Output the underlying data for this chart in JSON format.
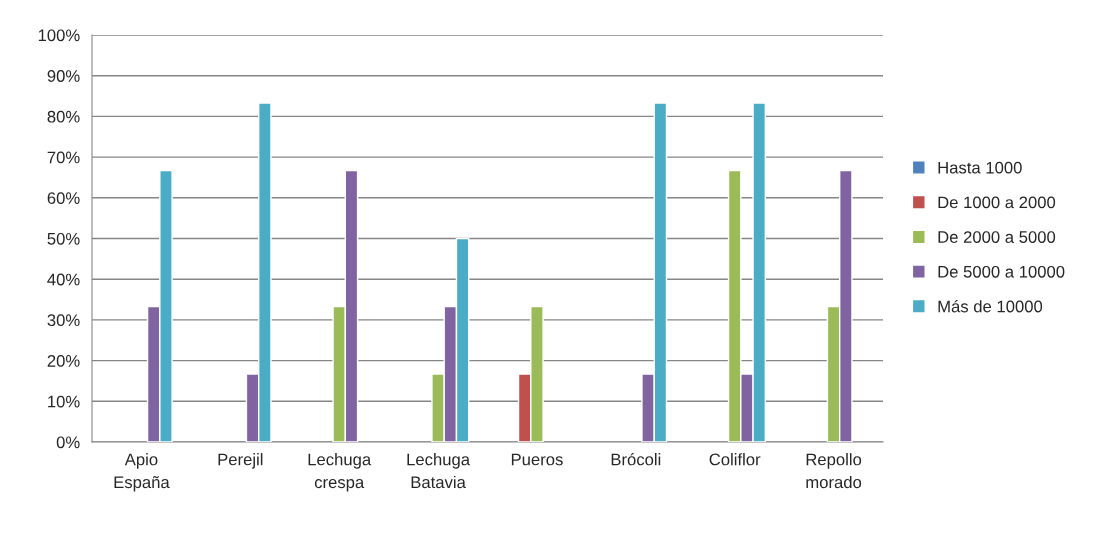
{
  "chart_data": {
    "type": "bar",
    "categories": [
      "Apio\nEspaña",
      "Perejil",
      "Lechuga\ncrespa",
      "Lechuga\nBatavia",
      "Pueros",
      "Brócoli",
      "Coliflor",
      "Repollo\nmorado"
    ],
    "series": [
      {
        "name": "Hasta 1000",
        "color": "#4f81bd",
        "values": [
          null,
          null,
          null,
          null,
          null,
          null,
          null,
          null
        ]
      },
      {
        "name": "De 1000 a 2000",
        "color": "#c0504d",
        "values": [
          null,
          null,
          null,
          null,
          16.7,
          null,
          null,
          null
        ]
      },
      {
        "name": "De 2000 a 5000",
        "color": "#9bbb59",
        "values": [
          null,
          null,
          33.3,
          16.7,
          33.3,
          null,
          66.7,
          33.3
        ]
      },
      {
        "name": "De 5000 a 10000",
        "color": "#8064a2",
        "values": [
          33.3,
          16.7,
          66.7,
          33.3,
          null,
          16.7,
          16.7,
          66.7
        ]
      },
      {
        "name": "Más de 10000",
        "color": "#4bacc6",
        "values": [
          66.7,
          83.3,
          null,
          50,
          null,
          83.3,
          83.3,
          null
        ]
      }
    ],
    "ylim": [
      0,
      100
    ],
    "yticks": [
      {
        "value": 0,
        "label": "0%"
      },
      {
        "value": 10,
        "label": "10%"
      },
      {
        "value": 20,
        "label": "20%"
      },
      {
        "value": 30,
        "label": "30%"
      },
      {
        "value": 40,
        "label": "40%"
      },
      {
        "value": 50,
        "label": "50%"
      },
      {
        "value": 60,
        "label": "60%"
      },
      {
        "value": 70,
        "label": "70%"
      },
      {
        "value": 80,
        "label": "80%"
      },
      {
        "value": 90,
        "label": "90%"
      },
      {
        "value": 100,
        "label": "100%"
      }
    ],
    "grid": "y",
    "legend": "right"
  }
}
